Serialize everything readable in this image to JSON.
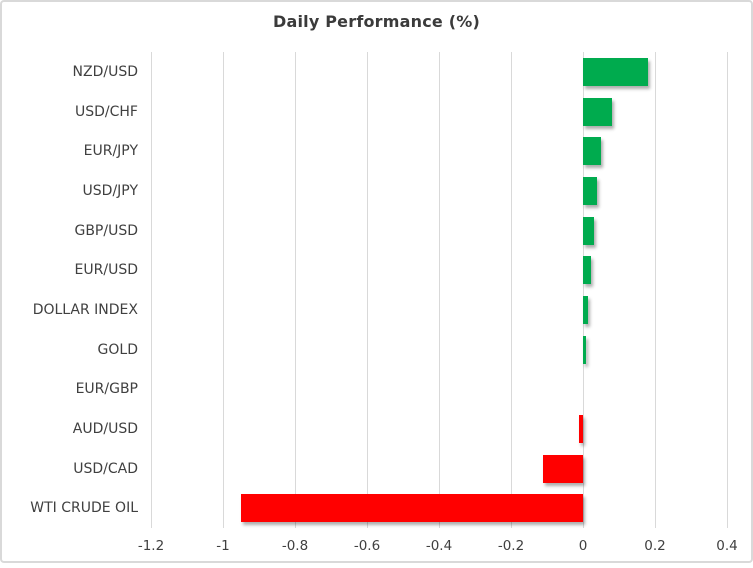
{
  "chart_data": {
    "type": "bar",
    "orientation": "horizontal",
    "title": "Daily Performance (%)",
    "xlabel": "",
    "ylabel": "",
    "categories": [
      "NZD/USD",
      "USD/CHF",
      "EUR/JPY",
      "USD/JPY",
      "GBP/USD",
      "EUR/USD",
      "DOLLAR INDEX",
      "GOLD",
      "EUR/GBP",
      "AUD/USD",
      "USD/CAD",
      "WTI CRUDE OIL"
    ],
    "values": [
      0.18,
      0.08,
      0.05,
      0.04,
      0.03,
      0.023,
      0.015,
      0.008,
      0.0,
      -0.012,
      -0.11,
      -0.95
    ],
    "xlim": [
      -1.2,
      0.4
    ],
    "x_ticks": [
      "-1.2",
      "-1",
      "-0.8",
      "-0.6",
      "-0.4",
      "-0.2",
      "0",
      "0.2",
      "0.4"
    ],
    "grid": true,
    "legend": false,
    "colors": {
      "positive": "#00AB4E",
      "negative": "#FF0000",
      "gridline": "#D9D9D9",
      "text": "#404040",
      "title_text": "#3B3B3B",
      "border": "#D9D9D9",
      "background": "#FFFFFF"
    }
  }
}
